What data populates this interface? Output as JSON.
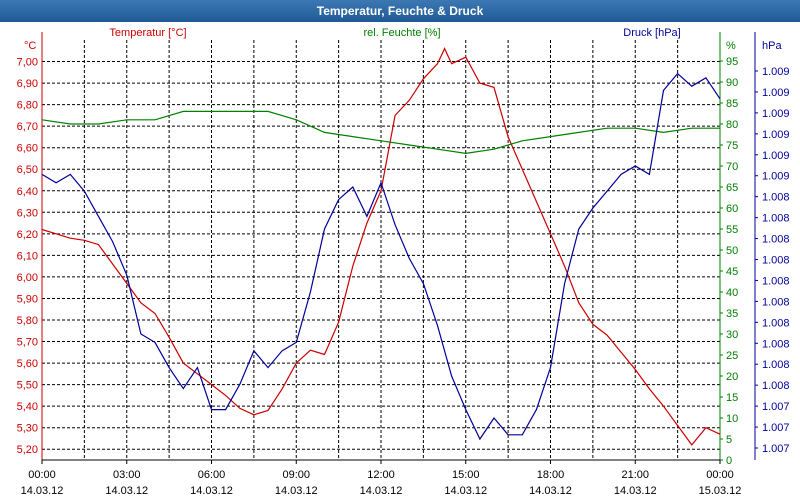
{
  "window": {
    "title": "Temperatur, Feuchte & Druck"
  },
  "colors": {
    "temperature": "#cc0000",
    "humidity": "#008000",
    "pressure": "#000099",
    "axis": "#000000",
    "grid": "#000000"
  },
  "chart_data": {
    "type": "line",
    "title": "Temperatur, Feuchte & Druck",
    "grid": true,
    "x": {
      "ticks": [
        {
          "time": "00:00",
          "date": "14.03.12"
        },
        {
          "time": "03:00",
          "date": "14.03.12"
        },
        {
          "time": "06:00",
          "date": "14.03.12"
        },
        {
          "time": "09:00",
          "date": "14.03.12"
        },
        {
          "time": "12:00",
          "date": "14.03.12"
        },
        {
          "time": "15:00",
          "date": "14.03.12"
        },
        {
          "time": "18:00",
          "date": "14.03.12"
        },
        {
          "time": "21:00",
          "date": "14.03.12"
        },
        {
          "time": "00:00",
          "date": "15.03.12"
        }
      ],
      "range": [
        "14.03.12 00:00",
        "15.03.12 00:00"
      ]
    },
    "axes": {
      "temperature": {
        "unit": "°C",
        "label": "Temperatur [°C]",
        "min": 5.15,
        "max": 7.1,
        "ticks": [
          "5,20",
          "5,30",
          "5,40",
          "5,50",
          "5,60",
          "5,70",
          "5,80",
          "5,90",
          "6,00",
          "6,10",
          "6,20",
          "6,30",
          "6,40",
          "6,50",
          "6,60",
          "6,70",
          "6,80",
          "6,90",
          "7,00"
        ]
      },
      "humidity": {
        "unit": "%",
        "label": "rel. Feuchte [%]",
        "min": 0,
        "max": 100,
        "ticks": [
          "0",
          "5",
          "10",
          "15",
          "20",
          "25",
          "30",
          "35",
          "40",
          "45",
          "50",
          "55",
          "60",
          "65",
          "70",
          "75",
          "80",
          "85",
          "90",
          "95"
        ]
      },
      "pressure": {
        "unit": "hPa",
        "label": "Druck [hPa]",
        "ticks": [
          "1.007",
          "1.007",
          "1.007",
          "1.008",
          "1.008",
          "1.008",
          "1.008",
          "1.008",
          "1.008",
          "1.008",
          "1.008",
          "1.008",
          "1.008",
          "1.009",
          "1.009",
          "1.009",
          "1.009",
          "1.009",
          "1.009"
        ]
      }
    },
    "series": [
      {
        "name": "Temperatur [°C]",
        "axis": "temperature",
        "points": [
          [
            0,
            6.22
          ],
          [
            0.5,
            6.2
          ],
          [
            1,
            6.18
          ],
          [
            1.5,
            6.17
          ],
          [
            2,
            6.15
          ],
          [
            2.5,
            6.06
          ],
          [
            3,
            5.97
          ],
          [
            3.5,
            5.88
          ],
          [
            4,
            5.83
          ],
          [
            4.5,
            5.72
          ],
          [
            5,
            5.6
          ],
          [
            5.5,
            5.55
          ],
          [
            6,
            5.5
          ],
          [
            6.5,
            5.45
          ],
          [
            7,
            5.39
          ],
          [
            7.5,
            5.36
          ],
          [
            8,
            5.38
          ],
          [
            8.5,
            5.48
          ],
          [
            9,
            5.6
          ],
          [
            9.5,
            5.66
          ],
          [
            10,
            5.64
          ],
          [
            10.5,
            5.79
          ],
          [
            11,
            6.05
          ],
          [
            11.5,
            6.25
          ],
          [
            12,
            6.4
          ],
          [
            12.5,
            6.75
          ],
          [
            13,
            6.82
          ],
          [
            13.5,
            6.92
          ],
          [
            14,
            6.99
          ],
          [
            14.25,
            7.06
          ],
          [
            14.5,
            6.99
          ],
          [
            15,
            7.02
          ],
          [
            15.5,
            6.9
          ],
          [
            16,
            6.88
          ],
          [
            16.5,
            6.65
          ],
          [
            17,
            6.5
          ],
          [
            17.5,
            6.35
          ],
          [
            18,
            6.2
          ],
          [
            18.5,
            6.05
          ],
          [
            19,
            5.88
          ],
          [
            19.5,
            5.78
          ],
          [
            20,
            5.73
          ],
          [
            20.5,
            5.65
          ],
          [
            21,
            5.57
          ],
          [
            21.5,
            5.48
          ],
          [
            22,
            5.4
          ],
          [
            22.5,
            5.31
          ],
          [
            23,
            5.22
          ],
          [
            23.5,
            5.3
          ],
          [
            24,
            5.27
          ]
        ]
      },
      {
        "name": "rel. Feuchte [%]",
        "axis": "humidity",
        "points": [
          [
            0,
            81
          ],
          [
            1,
            80
          ],
          [
            2,
            80
          ],
          [
            3,
            81
          ],
          [
            4,
            81
          ],
          [
            5,
            83
          ],
          [
            6,
            83
          ],
          [
            7,
            83
          ],
          [
            8,
            83
          ],
          [
            9,
            81
          ],
          [
            10,
            78
          ],
          [
            11,
            77
          ],
          [
            12,
            76
          ],
          [
            13,
            75
          ],
          [
            14,
            74
          ],
          [
            15,
            73
          ],
          [
            16,
            74
          ],
          [
            17,
            76
          ],
          [
            18,
            77
          ],
          [
            19,
            78
          ],
          [
            20,
            79
          ],
          [
            21,
            79
          ],
          [
            22,
            78
          ],
          [
            23,
            79
          ],
          [
            24,
            79
          ]
        ]
      },
      {
        "name": "Druck [hPa]",
        "axis": "pressure",
        "points": [
          [
            0,
            68
          ],
          [
            0.5,
            66
          ],
          [
            1,
            68
          ],
          [
            1.5,
            64
          ],
          [
            2,
            58
          ],
          [
            2.5,
            52
          ],
          [
            3,
            44
          ],
          [
            3.5,
            30
          ],
          [
            4,
            28
          ],
          [
            4.5,
            22
          ],
          [
            5,
            17
          ],
          [
            5.5,
            22
          ],
          [
            6,
            12
          ],
          [
            6.5,
            12
          ],
          [
            7,
            18
          ],
          [
            7.5,
            26
          ],
          [
            8,
            22
          ],
          [
            8.5,
            26
          ],
          [
            9,
            28
          ],
          [
            9.5,
            40
          ],
          [
            10,
            55
          ],
          [
            10.5,
            62
          ],
          [
            11,
            65
          ],
          [
            11.5,
            58
          ],
          [
            12,
            66
          ],
          [
            12.5,
            56
          ],
          [
            13,
            48
          ],
          [
            13.5,
            42
          ],
          [
            14,
            32
          ],
          [
            14.5,
            20
          ],
          [
            15,
            12
          ],
          [
            15.5,
            5
          ],
          [
            16,
            10
          ],
          [
            16.5,
            6
          ],
          [
            17,
            6
          ],
          [
            17.5,
            12
          ],
          [
            18,
            22
          ],
          [
            18.5,
            42
          ],
          [
            19,
            55
          ],
          [
            19.5,
            60
          ],
          [
            20,
            64
          ],
          [
            20.5,
            68
          ],
          [
            21,
            70
          ],
          [
            21.5,
            68
          ],
          [
            22,
            88
          ],
          [
            22.5,
            92
          ],
          [
            23,
            89
          ],
          [
            23.5,
            91
          ],
          [
            24,
            86
          ]
        ]
      }
    ]
  }
}
